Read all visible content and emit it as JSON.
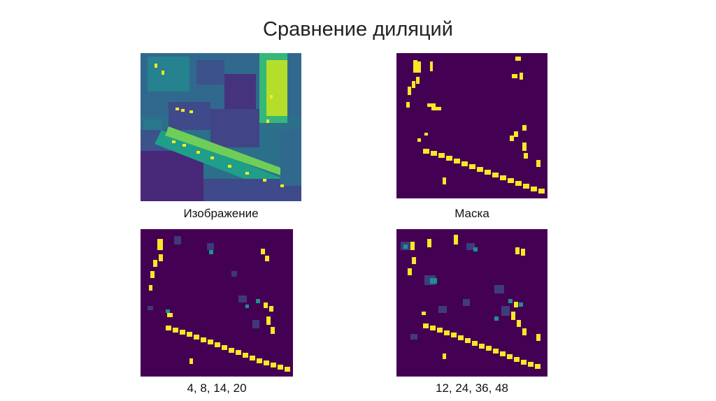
{
  "slide": {
    "title": "Сравнение диляций"
  },
  "panels": [
    {
      "id": "image",
      "caption": "Изображение"
    },
    {
      "id": "mask",
      "caption": "Маска"
    },
    {
      "id": "dil-small",
      "caption": "4, 8, 14, 20"
    },
    {
      "id": "dil-large",
      "caption": "12, 24, 36, 48"
    }
  ],
  "colors": {
    "background_purple": "#440154",
    "car_yellow": "#fde725",
    "teal": "#21908d",
    "green": "#5ec962",
    "blue": "#3b528b"
  }
}
